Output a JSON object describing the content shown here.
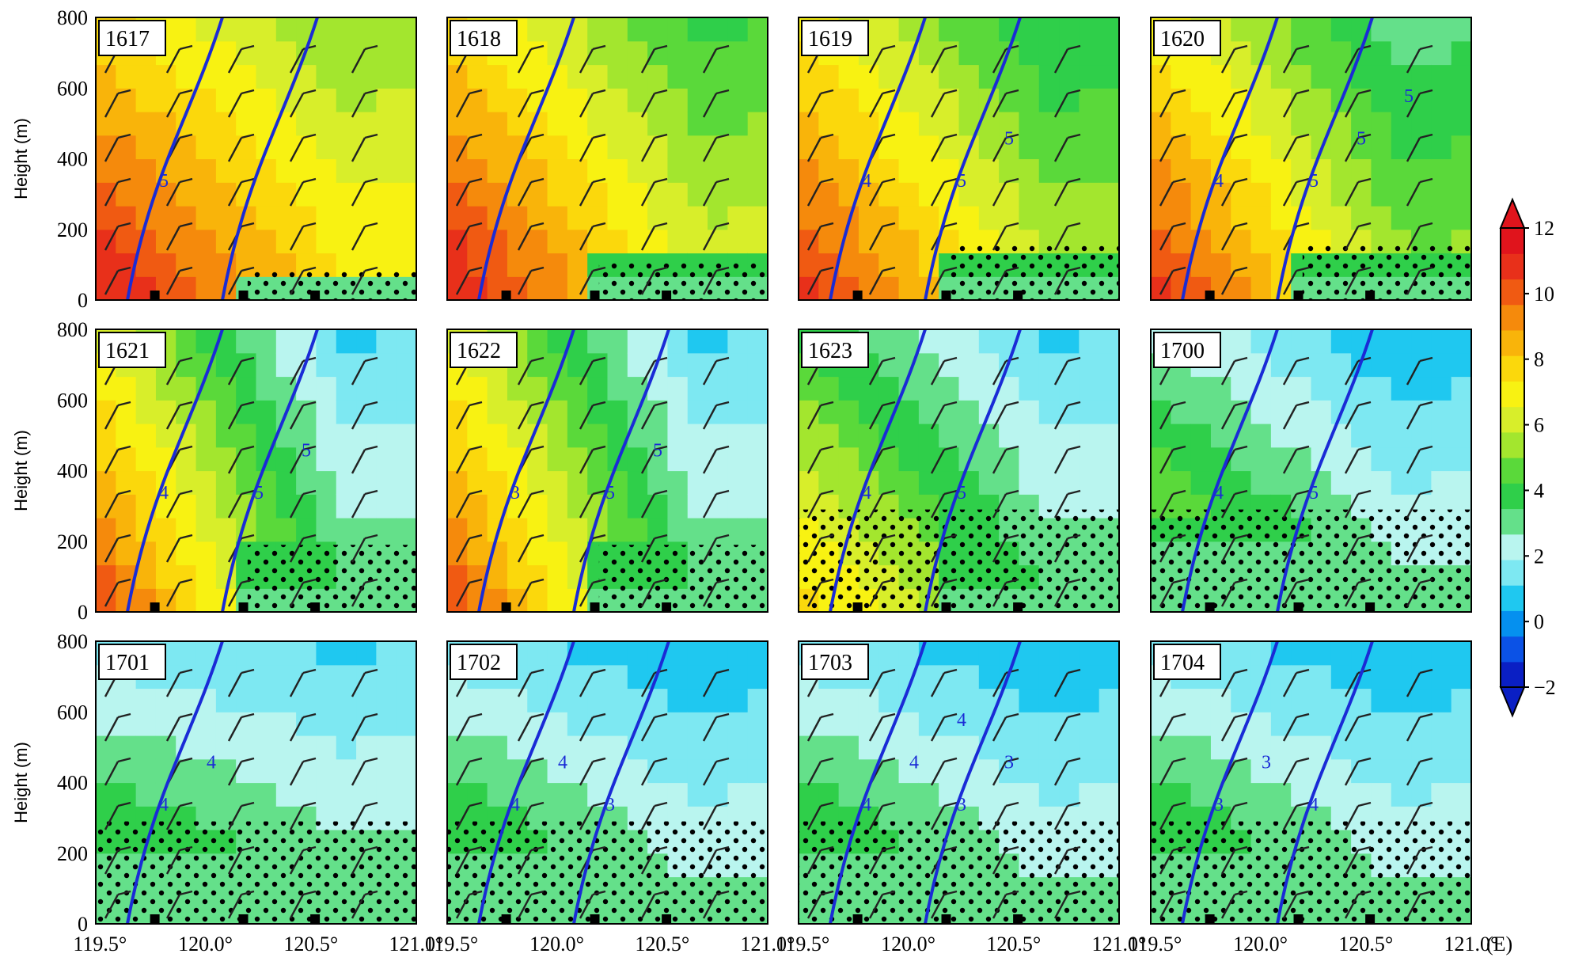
{
  "chart_data": {
    "type": "heatmap",
    "description_units": {
      "x": "longitude (°E)",
      "y": "height (m)",
      "color": "filled field",
      "contours": "blue isolines",
      "stippling": "dotted region"
    },
    "x_axis": {
      "ticks": [
        119.5,
        120.0,
        120.5,
        121.0
      ],
      "tick_labels": [
        "119.5°",
        "120.0°",
        "120.5°",
        "121.0°"
      ],
      "range": [
        119.48,
        121.0
      ],
      "unit_label": "(E)"
    },
    "y_axis": {
      "label": "Height (m)",
      "ticks": [
        0,
        200,
        400,
        600,
        800
      ],
      "tick_labels": [
        "0",
        "200",
        "400",
        "600",
        "800"
      ],
      "range": [
        0,
        800
      ]
    },
    "colorbar": {
      "ticks": [
        -2,
        0,
        2,
        4,
        6,
        8,
        10,
        12
      ],
      "tick_labels": [
        "−2",
        "0",
        "2",
        "4",
        "6",
        "8",
        "10",
        "12"
      ],
      "range": [
        -2,
        12
      ],
      "extend": "both",
      "colors": [
        "#0a1fc4",
        "#0b52e6",
        "#0590ef",
        "#1fc8f0",
        "#7de8f2",
        "#b9f5ef",
        "#64e08a",
        "#2fcf4a",
        "#5ad93a",
        "#a3e62e",
        "#d8ee2a",
        "#f8f212",
        "#fbd80c",
        "#f9b40a",
        "#f58a0c",
        "#f05a12",
        "#e8301a",
        "#e0141c"
      ]
    },
    "station_markers_lon": [
      119.76,
      120.18,
      120.52
    ],
    "panels": [
      {
        "title": "1617",
        "field_center": 11.5,
        "field_east": 7.5,
        "stipple_top": 80,
        "contours": [
          {
            "level": 5,
            "labels_shown": [
              "5"
            ]
          },
          {
            "level": 5,
            "labels_shown": []
          }
        ]
      },
      {
        "title": "1618",
        "field_center": 11.5,
        "field_east": 6.5,
        "stipple_top": 110,
        "contours": [
          {
            "level": 5,
            "labels_shown": []
          }
        ]
      },
      {
        "title": "1619",
        "field_center": 11.0,
        "field_east": 6.0,
        "stipple_top": 160,
        "contours": [
          {
            "level": 4,
            "labels_shown": [
              "4"
            ]
          },
          {
            "level": 5,
            "labels_shown": [
              "5",
              "5"
            ]
          }
        ]
      },
      {
        "title": "1620",
        "field_center": 11.0,
        "field_east": 5.5,
        "stipple_top": 160,
        "contours": [
          {
            "level": 4,
            "labels_shown": [
              "4"
            ]
          },
          {
            "level": 5,
            "labels_shown": [
              "5",
              "5",
              "5"
            ]
          }
        ]
      },
      {
        "title": "1621",
        "field_center": 10.5,
        "field_east": 3.5,
        "stipple_top": 190,
        "contours": [
          {
            "level": 4,
            "labels_shown": [
              "4"
            ]
          },
          {
            "level": 5,
            "labels_shown": [
              "5",
              "5"
            ]
          }
        ]
      },
      {
        "title": "1622",
        "field_center": 10.5,
        "field_east": 3.5,
        "stipple_top": 190,
        "contours": [
          {
            "level": 3,
            "labels_shown": [
              "3"
            ]
          },
          {
            "level": 5,
            "labels_shown": [
              "5",
              "5"
            ]
          }
        ]
      },
      {
        "title": "1623",
        "field_center": 8.0,
        "field_east": 3.5,
        "stipple_top": 290,
        "contours": [
          {
            "level": 4,
            "labels_shown": [
              "4"
            ]
          },
          {
            "level": 5,
            "labels_shown": [
              "5"
            ]
          }
        ]
      },
      {
        "title": "1700",
        "field_center": 6.5,
        "field_east": 3.0,
        "stipple_top": 290,
        "contours": [
          {
            "level": 4,
            "labels_shown": [
              "4"
            ]
          },
          {
            "level": 5,
            "labels_shown": [
              "5"
            ]
          }
        ]
      },
      {
        "title": "1701",
        "field_center": 5.5,
        "field_east": 3.5,
        "stipple_top": 290,
        "contours": [
          {
            "level": 4,
            "labels_shown": [
              "4",
              "4"
            ]
          }
        ]
      },
      {
        "title": "1702",
        "field_center": 5.5,
        "field_east": 3.0,
        "stipple_top": 290,
        "contours": [
          {
            "level": 4,
            "labels_shown": [
              "4",
              "4"
            ]
          },
          {
            "level": 3,
            "labels_shown": [
              "3"
            ]
          }
        ]
      },
      {
        "title": "1703",
        "field_center": 5.5,
        "field_east": 3.0,
        "stipple_top": 290,
        "contours": [
          {
            "level": 4,
            "labels_shown": [
              "4",
              "4",
              "4"
            ]
          },
          {
            "level": 3,
            "labels_shown": [
              "3",
              "3"
            ]
          }
        ]
      },
      {
        "title": "1704",
        "field_center": 5.5,
        "field_east": 3.0,
        "stipple_top": 290,
        "contours": [
          {
            "level": 3,
            "labels_shown": [
              "3",
              "3"
            ]
          },
          {
            "level": 4,
            "labels_shown": [
              "4"
            ]
          }
        ]
      }
    ]
  }
}
